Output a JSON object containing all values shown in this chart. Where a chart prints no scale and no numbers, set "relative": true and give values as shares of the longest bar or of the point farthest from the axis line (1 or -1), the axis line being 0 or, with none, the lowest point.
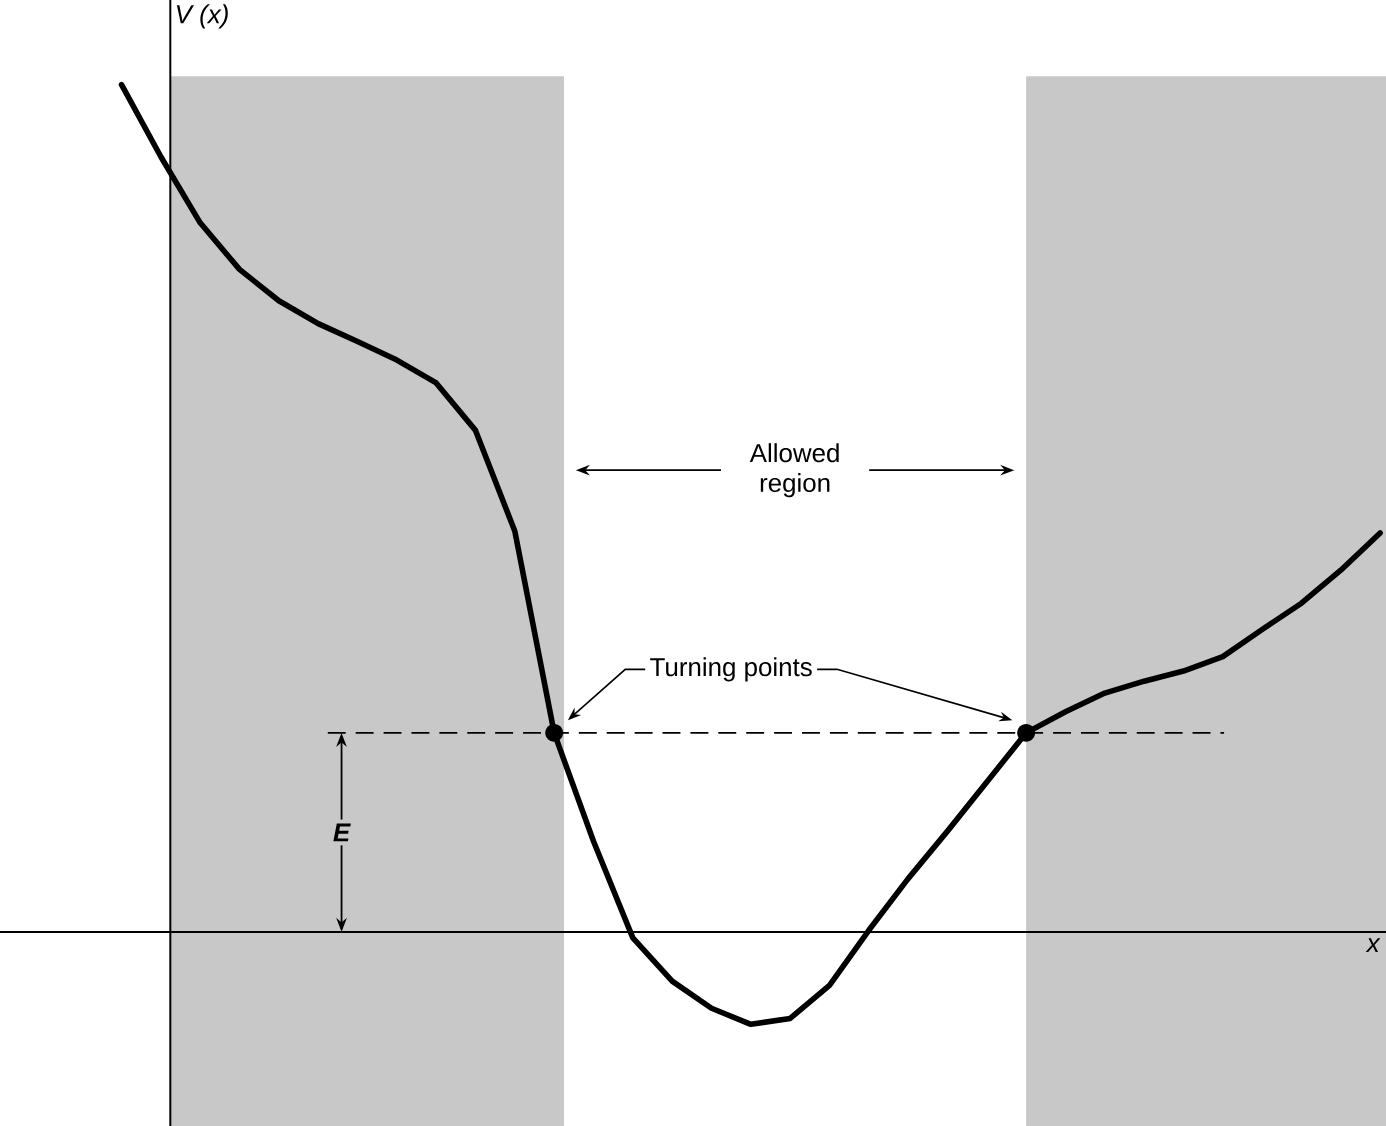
{
  "chart_data": {
    "type": "line",
    "relative": true,
    "xlabel": "x",
    "ylabel": "V (x)",
    "categories": [
      null,
      null,
      null,
      null,
      null,
      null,
      null,
      null,
      null,
      null,
      null,
      null,
      null,
      null,
      null,
      null,
      null,
      null,
      null,
      null,
      null,
      null,
      null,
      null,
      null,
      null,
      null,
      null,
      null,
      null,
      null,
      null,
      null
    ],
    "series": [
      {
        "color": "#000000",
        "values": [
          1.0,
          0.915,
          0.837,
          0.782,
          0.745,
          0.718,
          0.697,
          0.675,
          0.648,
          0.592,
          0.473,
          0.235,
          0.107,
          -0.007,
          -0.058,
          -0.09,
          -0.109,
          -0.102,
          -0.063,
          0.002,
          0.063,
          0.119,
          0.177,
          0.235,
          0.26,
          0.282,
          0.296,
          0.308,
          0.325,
          0.357,
          0.388,
          0.427,
          0.471
        ]
      }
    ],
    "ref_lines": [
      {
        "axis": "y",
        "value": 0.235,
        "label": "E",
        "line_style": "dashed"
      }
    ],
    "annotations": [
      "Allowed region",
      {
        "text": "Turning points",
        "y": 0.235
      }
    ]
  }
}
